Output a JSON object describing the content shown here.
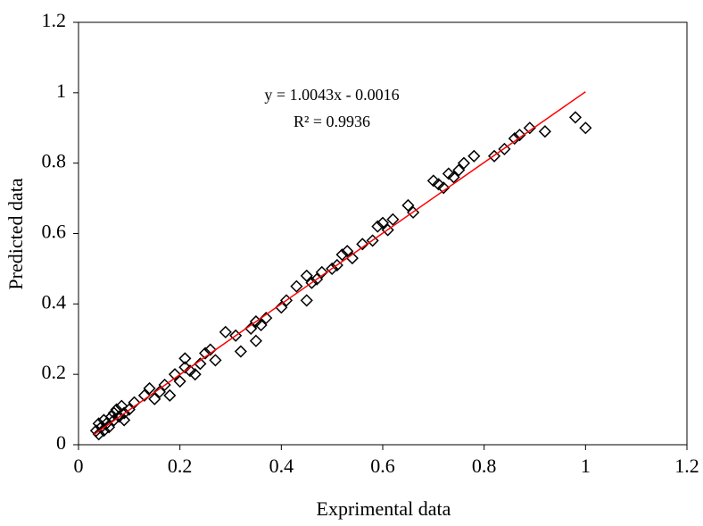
{
  "chart_data": {
    "type": "scatter",
    "x_label": "Exprimental data",
    "y_label": "Predicted data",
    "annotations": [
      "y = 1.0043x - 0.0016",
      "R² = 0.9936"
    ],
    "xlim": [
      0,
      1.2
    ],
    "ylim": [
      0,
      1.2
    ],
    "xticks": [
      0,
      0.2,
      0.4,
      0.6,
      0.8,
      1,
      1.2
    ],
    "yticks": [
      0,
      0.2,
      0.4,
      0.6,
      0.8,
      1,
      1.2
    ],
    "grid": false,
    "series": [
      {
        "color": "#000000",
        "x": [
          0.035,
          0.04,
          0.04,
          0.045,
          0.05,
          0.05,
          0.055,
          0.06,
          0.065,
          0.07,
          0.07,
          0.075,
          0.08,
          0.085,
          0.09,
          0.09,
          0.1,
          0.11,
          0.13,
          0.14,
          0.15,
          0.16,
          0.17,
          0.18,
          0.19,
          0.2,
          0.21,
          0.21,
          0.22,
          0.23,
          0.24,
          0.25,
          0.26,
          0.27,
          0.29,
          0.31,
          0.32,
          0.34,
          0.35,
          0.35,
          0.36,
          0.37,
          0.4,
          0.41,
          0.43,
          0.45,
          0.45,
          0.46,
          0.47,
          0.48,
          0.5,
          0.51,
          0.52,
          0.53,
          0.54,
          0.56,
          0.58,
          0.59,
          0.6,
          0.61,
          0.62,
          0.65,
          0.66,
          0.7,
          0.71,
          0.72,
          0.73,
          0.74,
          0.75,
          0.76,
          0.78,
          0.82,
          0.84,
          0.86,
          0.87,
          0.89,
          0.92,
          0.98,
          1.0
        ],
        "values": [
          0.04,
          0.03,
          0.06,
          0.05,
          0.07,
          0.04,
          0.06,
          0.05,
          0.08,
          0.07,
          0.09,
          0.1,
          0.08,
          0.11,
          0.09,
          0.07,
          0.1,
          0.12,
          0.14,
          0.16,
          0.13,
          0.15,
          0.17,
          0.14,
          0.2,
          0.18,
          0.22,
          0.245,
          0.21,
          0.2,
          0.23,
          0.26,
          0.27,
          0.24,
          0.32,
          0.31,
          0.265,
          0.33,
          0.35,
          0.295,
          0.34,
          0.36,
          0.39,
          0.41,
          0.45,
          0.41,
          0.48,
          0.46,
          0.47,
          0.49,
          0.5,
          0.51,
          0.54,
          0.55,
          0.53,
          0.57,
          0.58,
          0.62,
          0.63,
          0.61,
          0.64,
          0.68,
          0.66,
          0.75,
          0.74,
          0.73,
          0.77,
          0.76,
          0.78,
          0.8,
          0.82,
          0.82,
          0.84,
          0.87,
          0.88,
          0.9,
          0.89,
          0.93,
          0.9
        ]
      }
    ],
    "trendline": {
      "color": "#ff0000",
      "x": [
        0.03,
        1.0
      ],
      "values": [
        0.0285,
        1.0027
      ]
    }
  }
}
